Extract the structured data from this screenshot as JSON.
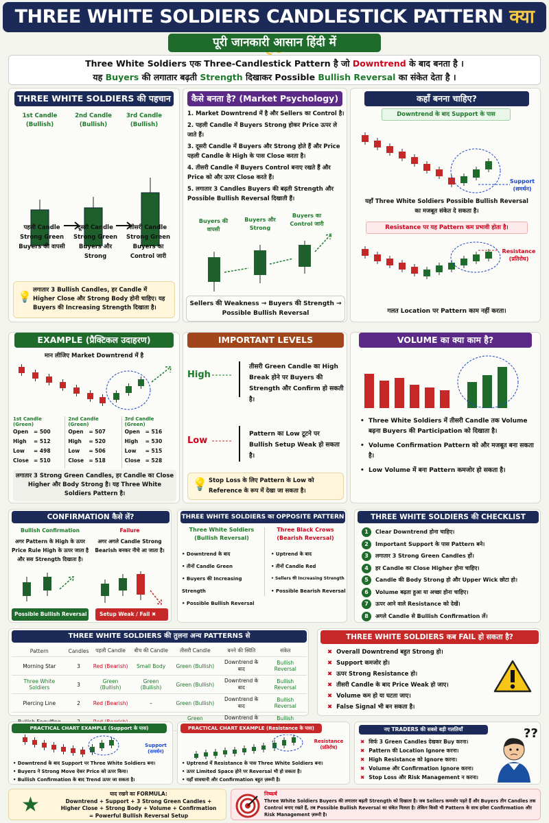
{
  "title": {
    "main": "THREE WHITE SOLDIERS CANDLESTICK PATTERN",
    "q": "क्या है?"
  },
  "subtitle": "पूरी जानकारी आसान हिंदी में",
  "intro": {
    "l1a": "Three White Soldiers एक Three-Candlestick Pattern है जो ",
    "l1b": "Downtrend",
    "l1c": " के बाद बनता है ।",
    "l2a": "यह ",
    "l2b": "Buyers",
    "l2c": " की लगातार बढ़ती ",
    "l2d": "Strength",
    "l2e": " दिखाकर Possible ",
    "l2f": "Bullish Reversal",
    "l2g": " का संकेत देता है ।"
  },
  "identify": {
    "header": "THREE WHITE SOLDIERS की पहचान",
    "c1": "1st Candle",
    "c2": "2nd Candle",
    "c3": "3rd Candle",
    "bull": "(Bullish)",
    "d1": "पहली Candle Strong Green Buyers की वापसी",
    "d2": "दूसरी Candle Strong Green Buyers और Strong",
    "d3": "तीसरी Candle Strong Green Buyers का Control जारी",
    "note": "लगातार 3 Bullish Candles, हर Candle में Higher Close और Strong Body होनी चाहिए। यह Buyers की Increasing Strength दिखाता है।"
  },
  "psych": {
    "header": "कैसे बनता है? (Market Psychology)",
    "items": [
      "1. Market Downtrend में है और Sellers का Control है।",
      "2. पहली Candle में Buyers Strong होकर Price ऊपर ले जाते हैं।",
      "3. दूसरी Candle में Buyers और Strong होते हैं और Price पहली Candle के High के पास Close करता है।",
      "4. तीसरी Candle में Buyers Control बनाए रखते हैं और Price को और ऊपर Close करते हैं।",
      "5. लगातार 3 Candles Buyers की बढ़ती Strength और Possible Bullish Reversal दिखाती हैं।"
    ],
    "l1": "Buyers की वापसी",
    "l2": "Buyers और Strong",
    "l3": "Buyers का Control जारी",
    "flow": "Sellers की Weakness → Buyers की Strength → Possible Bullish Reversal"
  },
  "where": {
    "header": "कहाँ बनना चाहिए?",
    "tag": "Downtrend के बाद Support के पास",
    "support": "Support",
    "support_hi": "(समर्थन)",
    "text": "यहाँ Three White Soldiers Possible Bullish Reversal का मजबूत संकेत दे सकता है।",
    "warn": "Resistance पर यह Pattern कम प्रभावी होता है।",
    "res": "Resistance",
    "res_hi": "(प्रतिरोध)",
    "bottom": "गलत Location पर Pattern काम नहीं करता।"
  },
  "example": {
    "header": "EXAMPLE (प्रैक्टिकल उदाहरण)",
    "sub": "मान लीजिए Market Downtrend में है",
    "cols": [
      {
        "h": "1st Candle (Green)",
        "rows": [
          [
            "Open",
            "= 500"
          ],
          [
            "High",
            "= 512"
          ],
          [
            "Low",
            "= 498"
          ],
          [
            "Close",
            "= 510"
          ]
        ]
      },
      {
        "h": "2nd Candle (Green)",
        "rows": [
          [
            "Open",
            "= 507"
          ],
          [
            "High",
            "= 520"
          ],
          [
            "Low",
            "= 506"
          ],
          [
            "Close",
            "= 518"
          ]
        ]
      },
      {
        "h": "3rd Candle (Green)",
        "rows": [
          [
            "Open",
            "= 516"
          ],
          [
            "High",
            "= 530"
          ],
          [
            "Low",
            "= 515"
          ],
          [
            "Close",
            "= 528"
          ]
        ]
      }
    ],
    "note": "लगातार 3 Strong Green Candles, हर Candle का Close Higher और Body Strong है। यह Three White Soldiers Pattern है।"
  },
  "levels": {
    "header": "IMPORTANT LEVELS",
    "high": "High",
    "high_t": "तीसरी Green Candle का High Break होने पर Buyers की Strength और Confirm हो सकती है।",
    "low": "Low",
    "low_t": "Pattern का Low टूटने पर Bullish Setup Weak हो सकता है।",
    "note": "Stop Loss के लिए Pattern के Low को Reference के रूप में देखा जा सकता है।"
  },
  "volume": {
    "header": "VOLUME का क्या काम है?",
    "items": [
      "Three White Soldiers में तीसरी Candle तक Volume बढ़ना Buyers की Participation को दिखाता है।",
      "Volume Confirmation Pattern को और मजबूत बना सकता है।",
      "Low Volume में बना Pattern कमजोर हो सकता है।"
    ]
  },
  "confirm": {
    "header": "CONFIRMATION कैसे लें?",
    "bc": "Bullish Confirmation",
    "bct": "अगर Pattern के High के ऊपर Price Rule High के ऊपर जाता है और सस Strength दिखाता है।",
    "fail": "Failure",
    "failt": "अगर अगले Candle Strong Bearish बनकर नीचे आ जाता है।",
    "b1": "Possible Bullish Reversal",
    "b2": "Setup Weak / Fail"
  },
  "opp": {
    "header": "THREE WHITE SOLDIERS का OPPOSITE PATTERN",
    "t1": "Three White Soldiers",
    "t1s": "(Bullish Reversal)",
    "t2": "Three Black Crows",
    "t2s": "(Bearish Reversal)",
    "l": [
      "Downtrend के बाद",
      "तीनों Candle Green",
      "Buyers की Increasing Strength",
      "Possible Bullish Reversal"
    ],
    "r": [
      "Uptrend के बाद",
      "तीनों Candle Red",
      "Sellers की Increasing Strength",
      "Possible Bearish Reversal"
    ]
  },
  "check": {
    "header": "THREE WHITE SOLDIERS की CHECKLIST",
    "items": [
      "Clear Downtrend होना चाहिए।",
      "Important Support के पास Pattern बने।",
      "लगातार 3 Strong Green Candles हों।",
      "हर Candle का Close Higher होना चाहिए।",
      "Candle की Body Strong हो और Upper Wick छोटा हो।",
      "Volume बढ़ता हुआ या अच्छा होना चाहिए।",
      "ऊपर आने वाले Resistance को देखें।",
      "अगले Candle से Bullish Confirmation लें।"
    ]
  },
  "compare": {
    "header": "THREE WHITE SOLDIERS की तुलना अन्य PATTERNS से",
    "heads": [
      "Pattern",
      "Candles",
      "पहली Candle",
      "बीच की Candle",
      "तीसरी Candle",
      "बनने की स्थिति",
      "संकेत"
    ],
    "rows": [
      [
        "Morning Star",
        "3",
        "Red (Bearish)",
        "Small Body",
        "Green (Bullish)",
        "Downtrend के बाद",
        "Bullish Reversal"
      ],
      [
        "Three White Soldiers",
        "3",
        "Green (Bullish)",
        "Green (Bullish)",
        "Green (Bullish)",
        "Downtrend के बाद",
        "Bullish Reversal"
      ],
      [
        "Piercing Line",
        "2",
        "Red (Bearish)",
        "–",
        "Green (Bullish)",
        "Downtrend के बाद",
        "Bullish Reversal"
      ],
      [
        "Bullish Engulfing",
        "2",
        "Red (Bearish)",
        "–",
        "Green (Engulfing)",
        "Downtrend के बाद",
        "Bullish Reversal"
      ]
    ]
  },
  "fail": {
    "header": "THREE WHITE SOLDIERS कब FAIL हो सकता है?",
    "items": [
      "Overall Downtrend बहुत Strong हो।",
      "Support कमजोर हो।",
      "ऊपर Strong Resistance हो।",
      "तीसरी Candle के बाद Price Weak हो जाए।",
      "Volume कम हो या घटता जाए।",
      "False Signal भी बन सकता है।"
    ]
  },
  "pc1": {
    "header": "PRACTICAL CHART EXAMPLE (Support के पास)",
    "support": "Support",
    "support_hi": "(समर्थन)",
    "items": [
      "Downtrend के बाद Support पर Three White Soldiers बना।",
      "Buyers ने Strong Move देकर Price को ऊपर किया।",
      "Bullish Confirmation के बाद Trend ऊपर जा सकता है।"
    ]
  },
  "pc2": {
    "header": "PRACTICAL CHART EXAMPLE (Resistance के पास)",
    "res": "Resistance",
    "res_hi": "(प्रतिरोध)",
    "items": [
      "Uptrend में Resistance के पास Three White Soldiers बना।",
      "ऊपर Limited Space होने पर Reversal भी हो सकता है।",
      "यहाँ सावधानी और Confirmation बहुत ज़रूरी है।"
    ]
  },
  "mistakes": {
    "header": "नए TRADERS की सबसे बड़ी गलतियाँ",
    "items": [
      "सिर्फ 3 Green Candles देखकर Buy करना।",
      "Pattern की Location Ignore करना।",
      "High Resistance को Ignore करना।",
      "Volume और Confirmation Ignore करना।",
      "Stop Loss और Risk Management न करना।"
    ]
  },
  "formula": {
    "t": "याद रखने का FORMULA:",
    "l1": "Downtrend + Support + 3 Strong Green Candles +",
    "l2": "Higher Close + Strong Body + Volume + Confirmation",
    "l3": "= Powerful Bullish Reversal Setup"
  },
  "concl": {
    "t": "निष्कर्ष",
    "text": "Three White Soldiers Buyers की लगातार बढ़ती Strength को दिखाता है। जब Sellers कमजोर पड़ते हैं और Buyers तीन Candles तक Control बनाए रखते हैं, तब Possible Bullish Reversal का संकेत मिलता है। लेकिन किसी भी Pattern के साथ हमेशा Confirmation और Risk Management ज़रूरी है।"
  }
}
